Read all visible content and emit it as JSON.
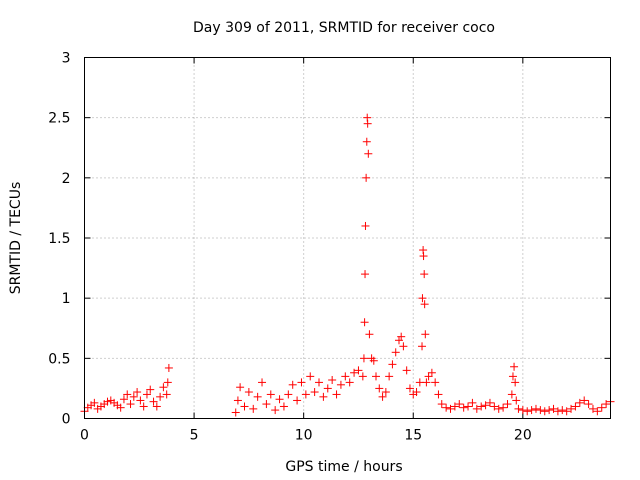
{
  "chart_data": {
    "type": "scatter",
    "title": "Day 309 of 2011, SRMTID for receiver coco",
    "xlabel": "GPS time / hours",
    "ylabel": "SRMTID / TECUs",
    "xlim": [
      0,
      24
    ],
    "ylim": [
      0,
      3
    ],
    "xticks": [
      0,
      5,
      10,
      15,
      20
    ],
    "yticks": [
      0,
      0.5,
      1,
      1.5,
      2,
      2.5,
      3
    ],
    "xtick_labels": [
      "0",
      "5",
      "10",
      "15",
      "20"
    ],
    "ytick_labels": [
      "0",
      "0.5",
      "1",
      "1.5",
      "2",
      "2.5",
      "3"
    ],
    "grid": true,
    "marker": "+",
    "series": [
      {
        "name": "SRMTID",
        "color": "#ff0000",
        "x": [
          0.0,
          0.15,
          0.3,
          0.45,
          0.6,
          0.75,
          0.9,
          1.05,
          1.2,
          1.35,
          1.5,
          1.65,
          1.8,
          1.95,
          2.1,
          2.25,
          2.4,
          2.55,
          2.7,
          2.85,
          3.0,
          3.15,
          3.3,
          3.45,
          3.6,
          3.75,
          3.8,
          3.85,
          6.9,
          7.0,
          7.1,
          7.3,
          7.5,
          7.7,
          7.9,
          8.1,
          8.3,
          8.5,
          8.7,
          8.9,
          9.1,
          9.3,
          9.5,
          9.7,
          9.9,
          10.1,
          10.3,
          10.5,
          10.7,
          10.9,
          11.1,
          11.3,
          11.5,
          11.7,
          11.9,
          12.1,
          12.3,
          12.5,
          12.7,
          12.75,
          12.78,
          12.8,
          12.82,
          12.85,
          12.88,
          12.9,
          12.92,
          12.95,
          13.0,
          13.1,
          13.2,
          13.3,
          13.45,
          13.6,
          13.75,
          13.9,
          14.05,
          14.2,
          14.35,
          14.45,
          14.55,
          14.7,
          14.85,
          15.0,
          15.15,
          15.3,
          15.4,
          15.42,
          15.45,
          15.47,
          15.5,
          15.52,
          15.55,
          15.6,
          15.7,
          15.85,
          16.0,
          16.15,
          16.3,
          16.5,
          16.7,
          16.9,
          17.1,
          17.3,
          17.5,
          17.7,
          17.9,
          18.1,
          18.3,
          18.5,
          18.7,
          18.9,
          19.1,
          19.3,
          19.5,
          19.55,
          19.6,
          19.65,
          19.7,
          19.8,
          20.0,
          20.2,
          20.4,
          20.6,
          20.8,
          21.0,
          21.2,
          21.4,
          21.6,
          21.8,
          22.0,
          22.2,
          22.4,
          22.6,
          22.8,
          23.0,
          23.2,
          23.4,
          23.6,
          23.8,
          24.0
        ],
        "y": [
          0.06,
          0.09,
          0.11,
          0.13,
          0.08,
          0.1,
          0.12,
          0.14,
          0.15,
          0.13,
          0.11,
          0.09,
          0.16,
          0.2,
          0.12,
          0.18,
          0.22,
          0.15,
          0.1,
          0.2,
          0.24,
          0.14,
          0.1,
          0.18,
          0.26,
          0.2,
          0.3,
          0.42,
          0.05,
          0.15,
          0.26,
          0.1,
          0.22,
          0.08,
          0.18,
          0.3,
          0.12,
          0.2,
          0.07,
          0.16,
          0.1,
          0.2,
          0.28,
          0.15,
          0.3,
          0.2,
          0.35,
          0.22,
          0.3,
          0.18,
          0.25,
          0.32,
          0.2,
          0.28,
          0.35,
          0.3,
          0.38,
          0.4,
          0.35,
          0.5,
          0.8,
          1.2,
          1.6,
          2.0,
          2.3,
          2.5,
          2.45,
          2.2,
          0.7,
          0.5,
          0.48,
          0.35,
          0.25,
          0.18,
          0.22,
          0.35,
          0.45,
          0.55,
          0.65,
          0.68,
          0.6,
          0.4,
          0.25,
          0.2,
          0.22,
          0.3,
          0.6,
          1.0,
          1.4,
          1.35,
          1.2,
          0.95,
          0.7,
          0.3,
          0.35,
          0.38,
          0.3,
          0.2,
          0.12,
          0.09,
          0.08,
          0.1,
          0.12,
          0.09,
          0.1,
          0.13,
          0.08,
          0.1,
          0.11,
          0.13,
          0.1,
          0.08,
          0.09,
          0.12,
          0.2,
          0.35,
          0.43,
          0.3,
          0.15,
          0.08,
          0.07,
          0.06,
          0.07,
          0.08,
          0.07,
          0.06,
          0.07,
          0.08,
          0.06,
          0.07,
          0.06,
          0.08,
          0.1,
          0.13,
          0.15,
          0.12,
          0.08,
          0.06,
          0.09,
          0.12,
          0.14
        ]
      }
    ]
  }
}
